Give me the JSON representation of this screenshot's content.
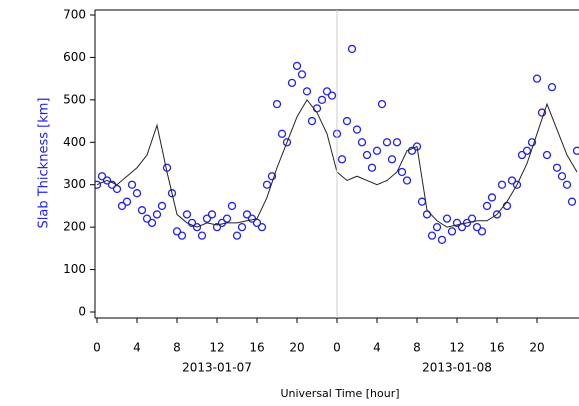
{
  "chart_data": {
    "type": "scatter",
    "y_label": "Slab Thickness [km]",
    "x_label": "Universal Time [hour]",
    "xlim": [
      -0.2,
      48.2
    ],
    "ylim": [
      0,
      700
    ],
    "yticks": [
      0,
      100,
      200,
      300,
      400,
      500,
      600,
      700
    ],
    "xticks": [
      0,
      4,
      8,
      12,
      16,
      20,
      {
        "value": 24,
        "label": "0"
      },
      {
        "value": 28,
        "label": "4"
      },
      {
        "value": 32,
        "label": "8"
      },
      {
        "value": 36,
        "label": "12"
      },
      {
        "value": 40,
        "label": "16"
      },
      {
        "value": 44,
        "label": "20"
      }
    ],
    "day_line": 24,
    "annotations": [
      {
        "text": "2013-01-07",
        "x": 12
      },
      {
        "text": "2013-01-08",
        "x": 36
      }
    ],
    "series": [
      {
        "type": "scatter",
        "color": "#2222ee",
        "x": [
          0,
          0.5,
          1,
          1.5,
          2,
          2.5,
          3,
          3.5,
          4,
          4.5,
          5,
          5.5,
          6,
          6.5,
          7,
          7.5,
          8,
          8.5,
          9,
          9.5,
          10,
          10.5,
          11,
          11.5,
          12,
          12.5,
          13,
          13.5,
          14,
          14.5,
          15,
          15.5,
          16,
          16.5,
          17,
          17.5,
          18,
          18.5,
          19,
          19.5,
          20,
          20.5,
          21,
          21.5,
          22,
          22.5,
          23,
          23.5,
          24,
          24.5,
          25,
          25.5,
          26,
          26.5,
          27,
          27.5,
          28,
          28.5,
          29,
          29.5,
          30,
          30.5,
          31,
          31.5,
          32,
          32.5,
          33,
          33.5,
          34,
          34.5,
          35,
          35.5,
          36,
          36.5,
          37,
          37.5,
          38,
          38.5,
          39,
          39.5,
          40,
          40.5,
          41,
          41.5,
          42,
          42.5,
          43,
          43.5,
          44,
          44.5,
          45,
          45.5,
          46,
          46.5,
          47,
          47.5,
          48
        ],
        "values": [
          300,
          320,
          310,
          300,
          290,
          250,
          260,
          300,
          280,
          240,
          220,
          210,
          230,
          250,
          340,
          280,
          190,
          180,
          230,
          210,
          200,
          180,
          220,
          230,
          200,
          210,
          220,
          250,
          180,
          200,
          230,
          220,
          210,
          200,
          300,
          320,
          490,
          420,
          400,
          540,
          580,
          560,
          520,
          450,
          480,
          500,
          520,
          510,
          420,
          360,
          450,
          620,
          430,
          400,
          370,
          340,
          380,
          490,
          400,
          360,
          400,
          330,
          310,
          380,
          390,
          260,
          230,
          180,
          200,
          170,
          220,
          190,
          210,
          200,
          210,
          220,
          200,
          190,
          250,
          270,
          230,
          300,
          250,
          310,
          300,
          370,
          380,
          400,
          550,
          470,
          370,
          530,
          340,
          320,
          300,
          260,
          380
        ]
      },
      {
        "type": "line",
        "color": "#222222",
        "x": [
          0,
          1,
          2,
          3,
          4,
          5,
          6,
          7,
          8,
          9,
          10,
          11,
          12,
          13,
          14,
          15,
          16,
          17,
          18,
          19,
          20,
          21,
          22,
          23,
          24,
          25,
          26,
          27,
          28,
          29,
          30,
          31,
          32,
          33,
          34,
          35,
          36,
          37,
          38,
          39,
          40,
          41,
          42,
          43,
          44,
          45,
          46,
          47,
          48
        ],
        "values": [
          300,
          310,
          300,
          320,
          340,
          370,
          440,
          330,
          230,
          210,
          200,
          210,
          205,
          210,
          210,
          215,
          220,
          270,
          340,
          400,
          460,
          500,
          470,
          420,
          330,
          310,
          320,
          310,
          300,
          310,
          330,
          380,
          390,
          240,
          215,
          200,
          205,
          210,
          215,
          215,
          230,
          260,
          300,
          350,
          420,
          490,
          430,
          370,
          330
        ]
      }
    ]
  }
}
